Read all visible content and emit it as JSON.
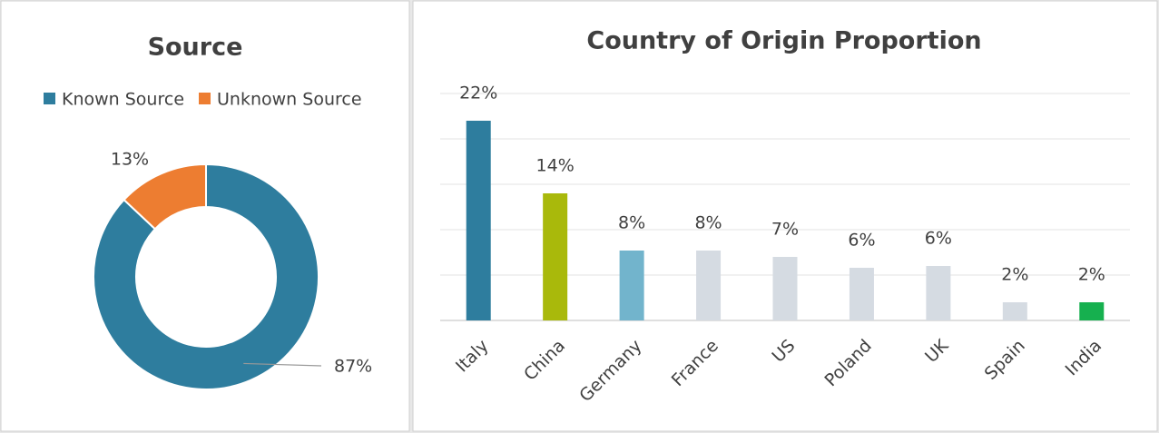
{
  "chart_data": [
    {
      "type": "donut",
      "title": "Source",
      "categories": [
        "Known Source",
        "Unknown Source"
      ],
      "values": [
        87,
        13
      ],
      "value_labels": [
        "87%",
        "13%"
      ],
      "colors": [
        "#2e7d9e",
        "#ed7d31"
      ],
      "legend": "top"
    },
    {
      "type": "bar",
      "title": "Country of Origin Proportion",
      "categories": [
        "Italy",
        "China",
        "Germany",
        "France",
        "US",
        "Poland",
        "UK",
        "Spain",
        "India"
      ],
      "values": [
        22,
        14,
        7.7,
        7.7,
        7,
        5.8,
        6,
        2,
        2
      ],
      "value_labels": [
        "22%",
        "14%",
        "8%",
        "8%",
        "7%",
        "6%",
        "6%",
        "2%",
        "2%"
      ],
      "colors": [
        "#2e7d9e",
        "#a9b90b",
        "#72b4cc",
        "#d5dbe2",
        "#d5dbe2",
        "#d5dbe2",
        "#d5dbe2",
        "#d5dbe2",
        "#16b04f"
      ],
      "ylim": [
        0,
        25
      ],
      "yticks": [
        0,
        5,
        10,
        15,
        20,
        25
      ],
      "grid": true,
      "show_tick_labels": false
    }
  ]
}
